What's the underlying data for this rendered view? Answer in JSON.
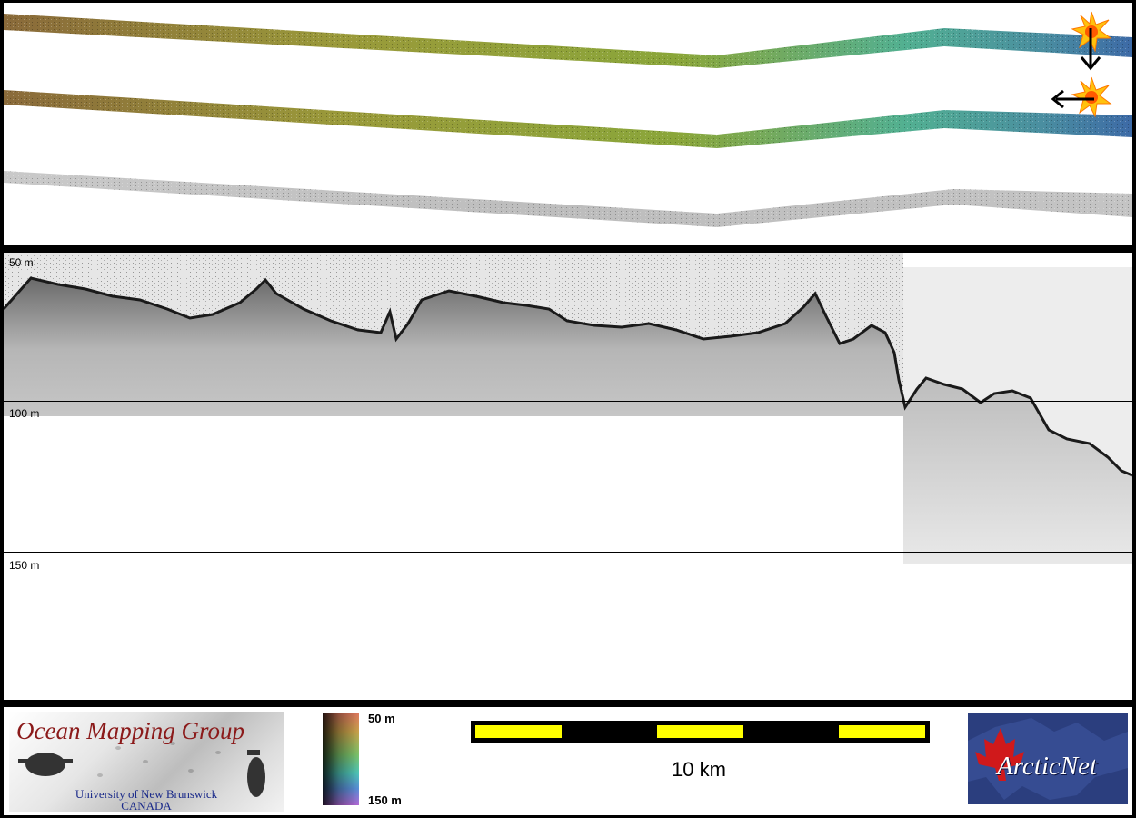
{
  "depth_labels": {
    "top": "50 m",
    "middle": "100 m",
    "bottom": "150 m"
  },
  "colorbar": {
    "top_label": "50 m",
    "bottom_label": "150 m"
  },
  "scale": {
    "label": "10 km",
    "bar_color": "#ffff00"
  },
  "logos": {
    "omg": {
      "title": "Ocean Mapping Group",
      "subtitle_1": "University of New Brunswick",
      "subtitle_2": "CANADA"
    },
    "arcticnet": {
      "name": "ArcticNet"
    }
  },
  "colors": {
    "frame": "#000000",
    "title_red": "#8b1a1a",
    "subtitle_blue": "#1a2a8a",
    "arcticnet_blue": "#2b3e7e"
  },
  "icons": [
    "sun-icon",
    "arrow-down-icon",
    "arrow-left-icon",
    "maple-leaf-icon",
    "ship-silhouette-icon"
  ]
}
